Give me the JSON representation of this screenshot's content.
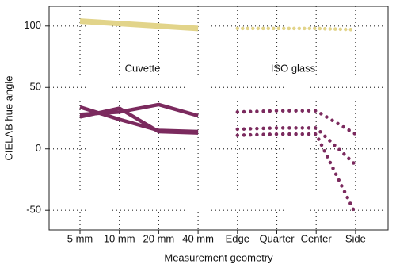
{
  "chart_data": {
    "type": "line",
    "x_label": "Measurement geometry",
    "y_label": "CIELAB hue angle",
    "categories": [
      "5 mm",
      "10 mm",
      "20 mm",
      "40 mm",
      "Edge",
      "Quarter",
      "Center",
      "Side"
    ],
    "annotations": [
      "Cuvette",
      "ISO glass"
    ],
    "ylim": [
      -66,
      116
    ],
    "yticks": [
      -50,
      0,
      50,
      100
    ],
    "grid": true,
    "series": [
      {
        "color": "#e2d48a",
        "style": "solid",
        "values": [
          104,
          102,
          100,
          98,
          null,
          null,
          null,
          null
        ]
      },
      {
        "color": "#7b2a5e",
        "style": "solid",
        "values": [
          26,
          33,
          14,
          13,
          null,
          null,
          null,
          null
        ]
      },
      {
        "color": "#7b2a5e",
        "style": "solid",
        "values": [
          28,
          30,
          36,
          27,
          null,
          null,
          null,
          null
        ]
      },
      {
        "color": "#7b2a5e",
        "style": "solid",
        "values": [
          34,
          24,
          15,
          14,
          null,
          null,
          null,
          null
        ]
      },
      {
        "color": "#e2d48a",
        "style": "dotted",
        "values": [
          null,
          null,
          null,
          null,
          98,
          98,
          98,
          97
        ]
      },
      {
        "color": "#7b2a5e",
        "style": "dotted",
        "values": [
          null,
          null,
          null,
          null,
          30,
          31,
          31,
          12
        ]
      },
      {
        "color": "#7b2a5e",
        "style": "dotted",
        "values": [
          null,
          null,
          null,
          null,
          16,
          17,
          17,
          -13
        ]
      },
      {
        "color": "#7b2a5e",
        "style": "dotted",
        "values": [
          null,
          null,
          null,
          null,
          11,
          12,
          12,
          -53
        ]
      }
    ]
  }
}
